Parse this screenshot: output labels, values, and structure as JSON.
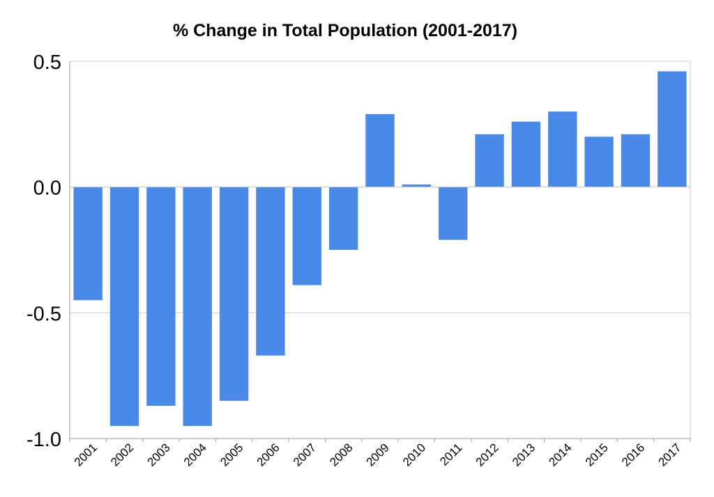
{
  "chart_data": {
    "type": "bar",
    "title": "% Change in Total Population (2001-2017)",
    "xlabel": "",
    "ylabel": "",
    "categories": [
      "2001",
      "2002",
      "2003",
      "2004",
      "2005",
      "2006",
      "2007",
      "2008",
      "2009",
      "2010",
      "2011",
      "2012",
      "2013",
      "2014",
      "2015",
      "2016",
      "2017"
    ],
    "values": [
      -0.45,
      -0.95,
      -0.87,
      -0.95,
      -0.85,
      -0.67,
      -0.39,
      -0.25,
      0.29,
      0.01,
      -0.21,
      0.21,
      0.26,
      0.3,
      0.2,
      0.21,
      0.46
    ],
    "ylim": [
      -1.0,
      0.5
    ],
    "yticks": [
      "0.5",
      "0.0",
      "-0.5",
      "-1.0"
    ],
    "grid": true,
    "legend": "none",
    "colors": {
      "bar": "#4a89e8",
      "grid": "#cccccc",
      "axis": "#999999"
    }
  }
}
